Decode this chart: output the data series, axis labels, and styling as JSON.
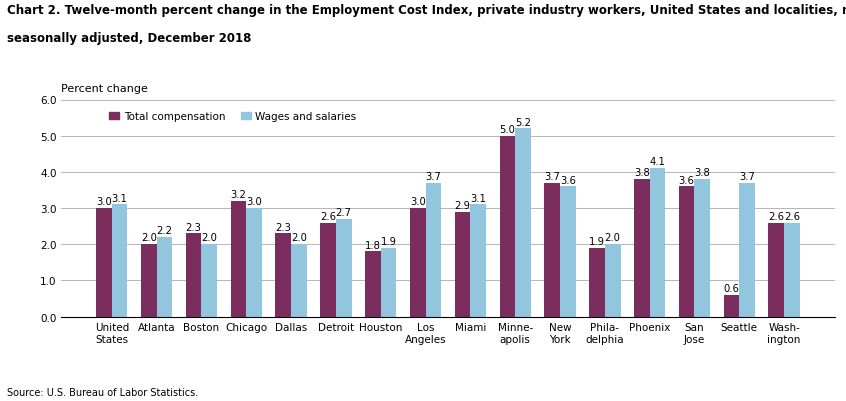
{
  "title_line1": "Chart 2. Twelve-month percent change in the Employment Cost Index, private industry workers, United States and localities, not",
  "title_line2": "seasonally adjusted, December 2018",
  "ylabel": "Percent change",
  "source": "Source: U.S. Bureau of Labor Statistics.",
  "ylim": [
    0.0,
    6.0
  ],
  "yticks": [
    0.0,
    1.0,
    2.0,
    3.0,
    4.0,
    5.0,
    6.0
  ],
  "categories": [
    "United\nStates",
    "Atlanta",
    "Boston",
    "Chicago",
    "Dallas",
    "Detroit",
    "Houston",
    "Los\nAngeles",
    "Miami",
    "Minne-\napolis",
    "New\nYork",
    "Phila-\ndelphia",
    "Phoenix",
    "San\nJose",
    "Seattle",
    "Wash-\nington"
  ],
  "total_compensation": [
    3.0,
    2.0,
    2.3,
    3.2,
    2.3,
    2.6,
    1.8,
    3.0,
    2.9,
    5.0,
    3.7,
    1.9,
    3.8,
    3.6,
    0.6,
    2.6
  ],
  "wages_and_salaries": [
    3.1,
    2.2,
    2.0,
    3.0,
    2.0,
    2.7,
    1.9,
    3.7,
    3.1,
    5.2,
    3.6,
    2.0,
    4.1,
    3.8,
    3.7,
    2.6
  ],
  "color_total": "#7B2D5E",
  "color_wages": "#92C5DE",
  "legend_labels": [
    "Total compensation",
    "Wages and salaries"
  ],
  "bar_width": 0.35,
  "label_fontsize": 7.2,
  "tick_fontsize": 7.5,
  "title_fontsize": 8.5,
  "ylabel_fontsize": 8.0
}
